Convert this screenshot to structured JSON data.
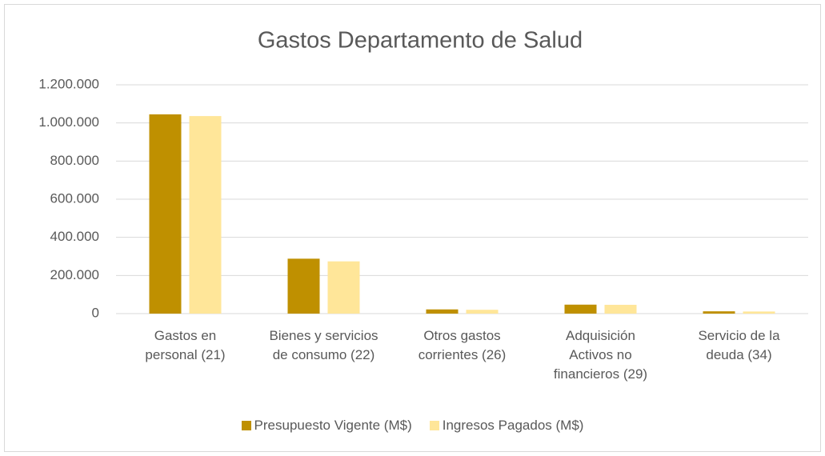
{
  "chart_data": {
    "type": "bar",
    "title": "Gastos Departamento de Salud",
    "categories": [
      "Gastos en\npersonal (21)",
      "Bienes y servicios\nde consumo (22)",
      "Otros gastos\ncorrientes (26)",
      "Adquisición\nActivos no\nfinancieros (29)",
      "Servicio de la\ndeuda (34)"
    ],
    "series": [
      {
        "name": "Presupuesto Vigente (M$)",
        "color": "#bf9000",
        "values": [
          1045000,
          288000,
          22000,
          47000,
          12000
        ]
      },
      {
        "name": "Ingresos Pagados (M$)",
        "color": "#ffe699",
        "values": [
          1036000,
          274000,
          20000,
          46000,
          11000
        ]
      }
    ],
    "ylim": [
      0,
      1200000
    ],
    "yticks": [
      0,
      {
        "value": 200000,
        "label": "200.000"
      },
      {
        "value": 400000,
        "label": "400.000"
      },
      {
        "value": 600000,
        "label": "600.000"
      },
      {
        "value": 800000,
        "label": "800.000"
      },
      {
        "value": 1000000,
        "label": "1.000.000"
      },
      {
        "value": 1200000,
        "label": "1.200.000"
      }
    ],
    "grid": true,
    "legend": "bottom"
  }
}
